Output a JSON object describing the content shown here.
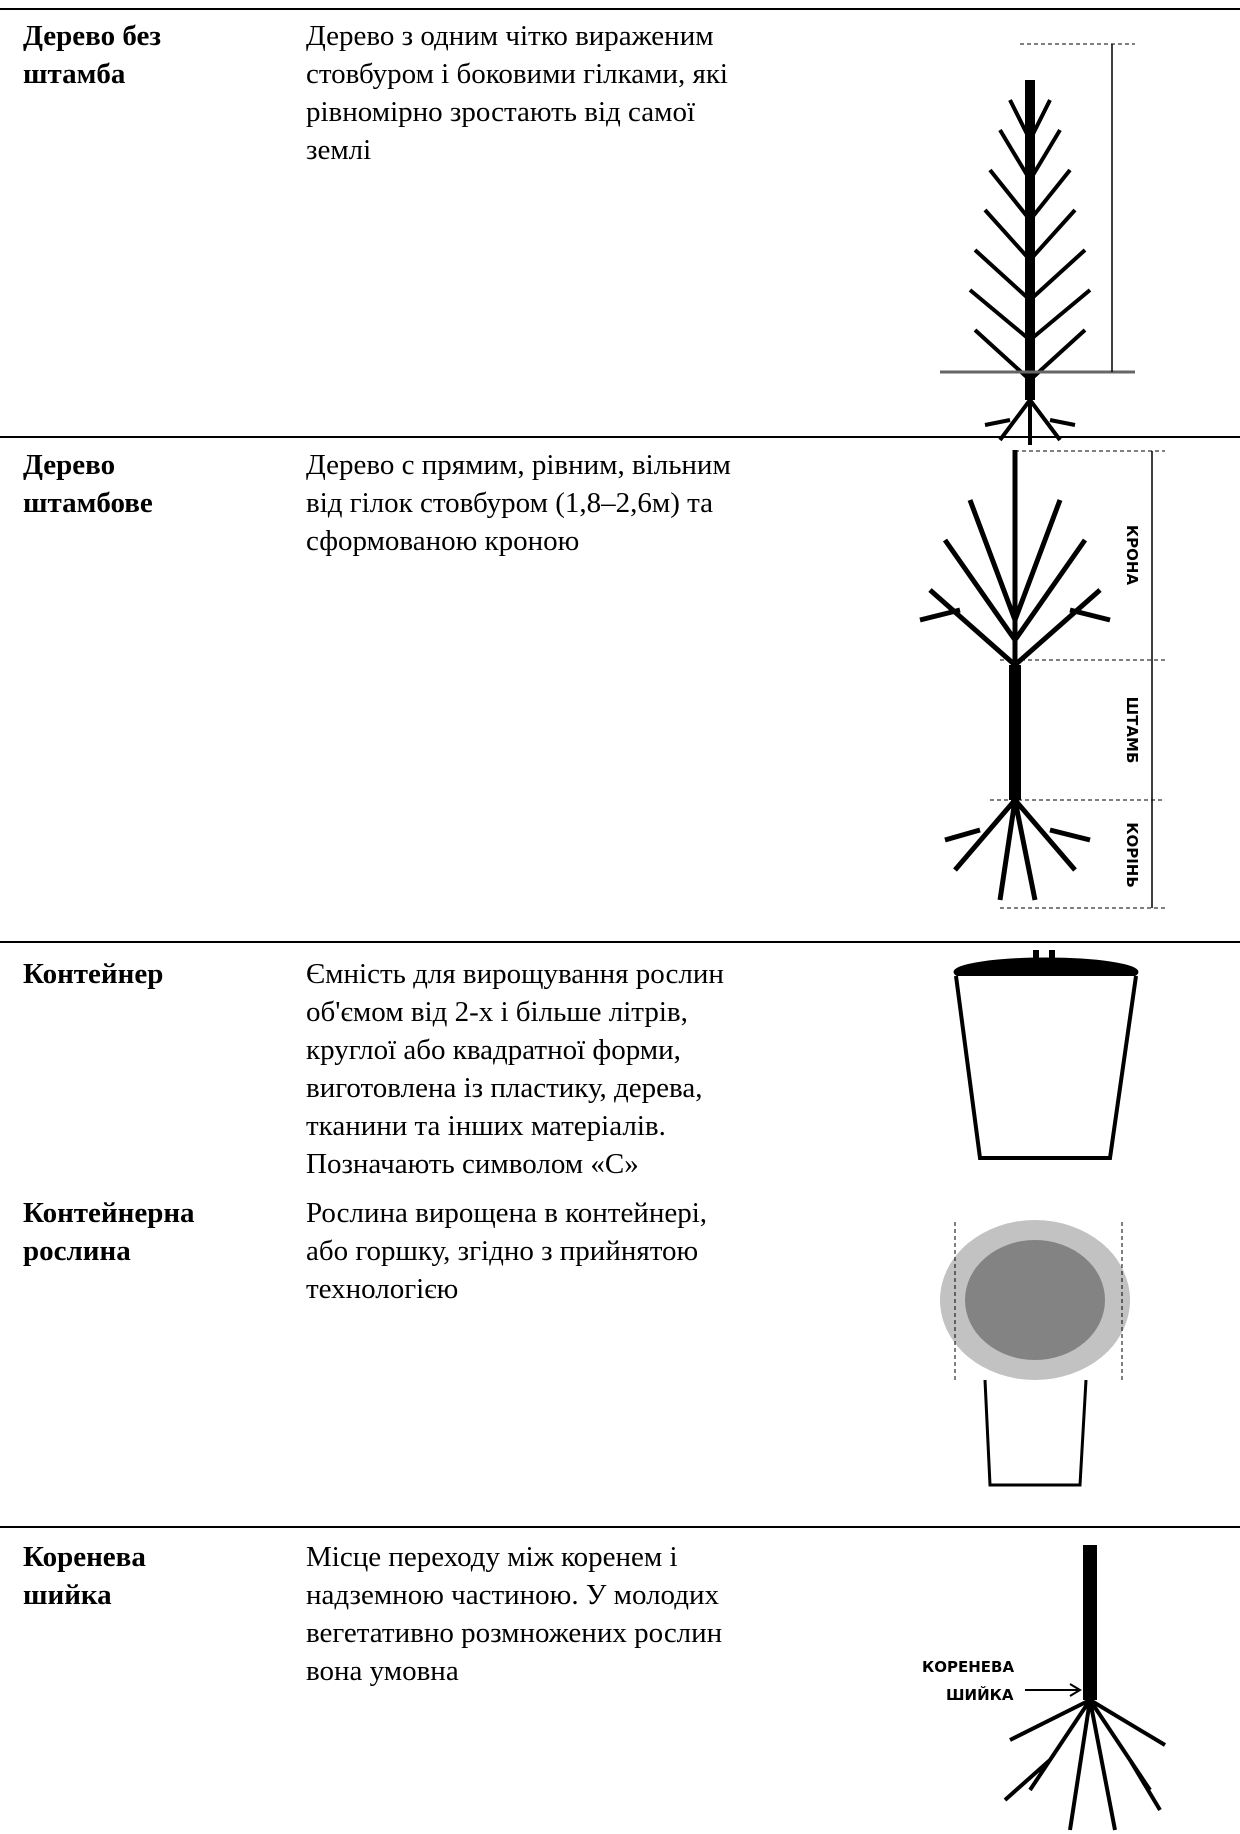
{
  "table": {
    "rows": [
      {
        "term": [
          "Дерево без",
          "штамба"
        ],
        "description": [
          "Дерево з одним чітко вираженим",
          "стовбуром і боковими гілками, які",
          "рівномірно зростають від самої",
          "землі"
        ]
      },
      {
        "term": [
          "Дерево",
          "штамбове"
        ],
        "description": [
          "Дерево с прямим, рівним, вільним",
          "від гілок стовбуром (1,8–2,6м) та",
          "сформованою кроною"
        ],
        "labels": [
          "КРОНА",
          "ШТАМБ",
          "КОРІНЬ"
        ]
      },
      {
        "term": [
          "Контейнер"
        ],
        "description": [
          "Ємність для вирощування рослин",
          "об'ємом від 2-х і більше літрів,",
          "круглої або квадратної форми,",
          "виготовлена із пластику, дерева,",
          "тканини та інших матеріалів.",
          "Позначають символом «С»"
        ]
      },
      {
        "term": [
          "Контейнерна",
          "рослина"
        ],
        "description": [
          "Рослина вирощена в контейнері,",
          "або горшку, згідно з прийнятою",
          "технологією"
        ]
      },
      {
        "term": [
          "Коренева",
          "шийка"
        ],
        "description": [
          "Місце переходу між коренем і",
          "надземною частиною. У молодих",
          "вегетативно розмножених рослин",
          "вона умовна"
        ],
        "labels": [
          "КОРЕНЕВА",
          "ШИЙКА"
        ]
      }
    ]
  }
}
